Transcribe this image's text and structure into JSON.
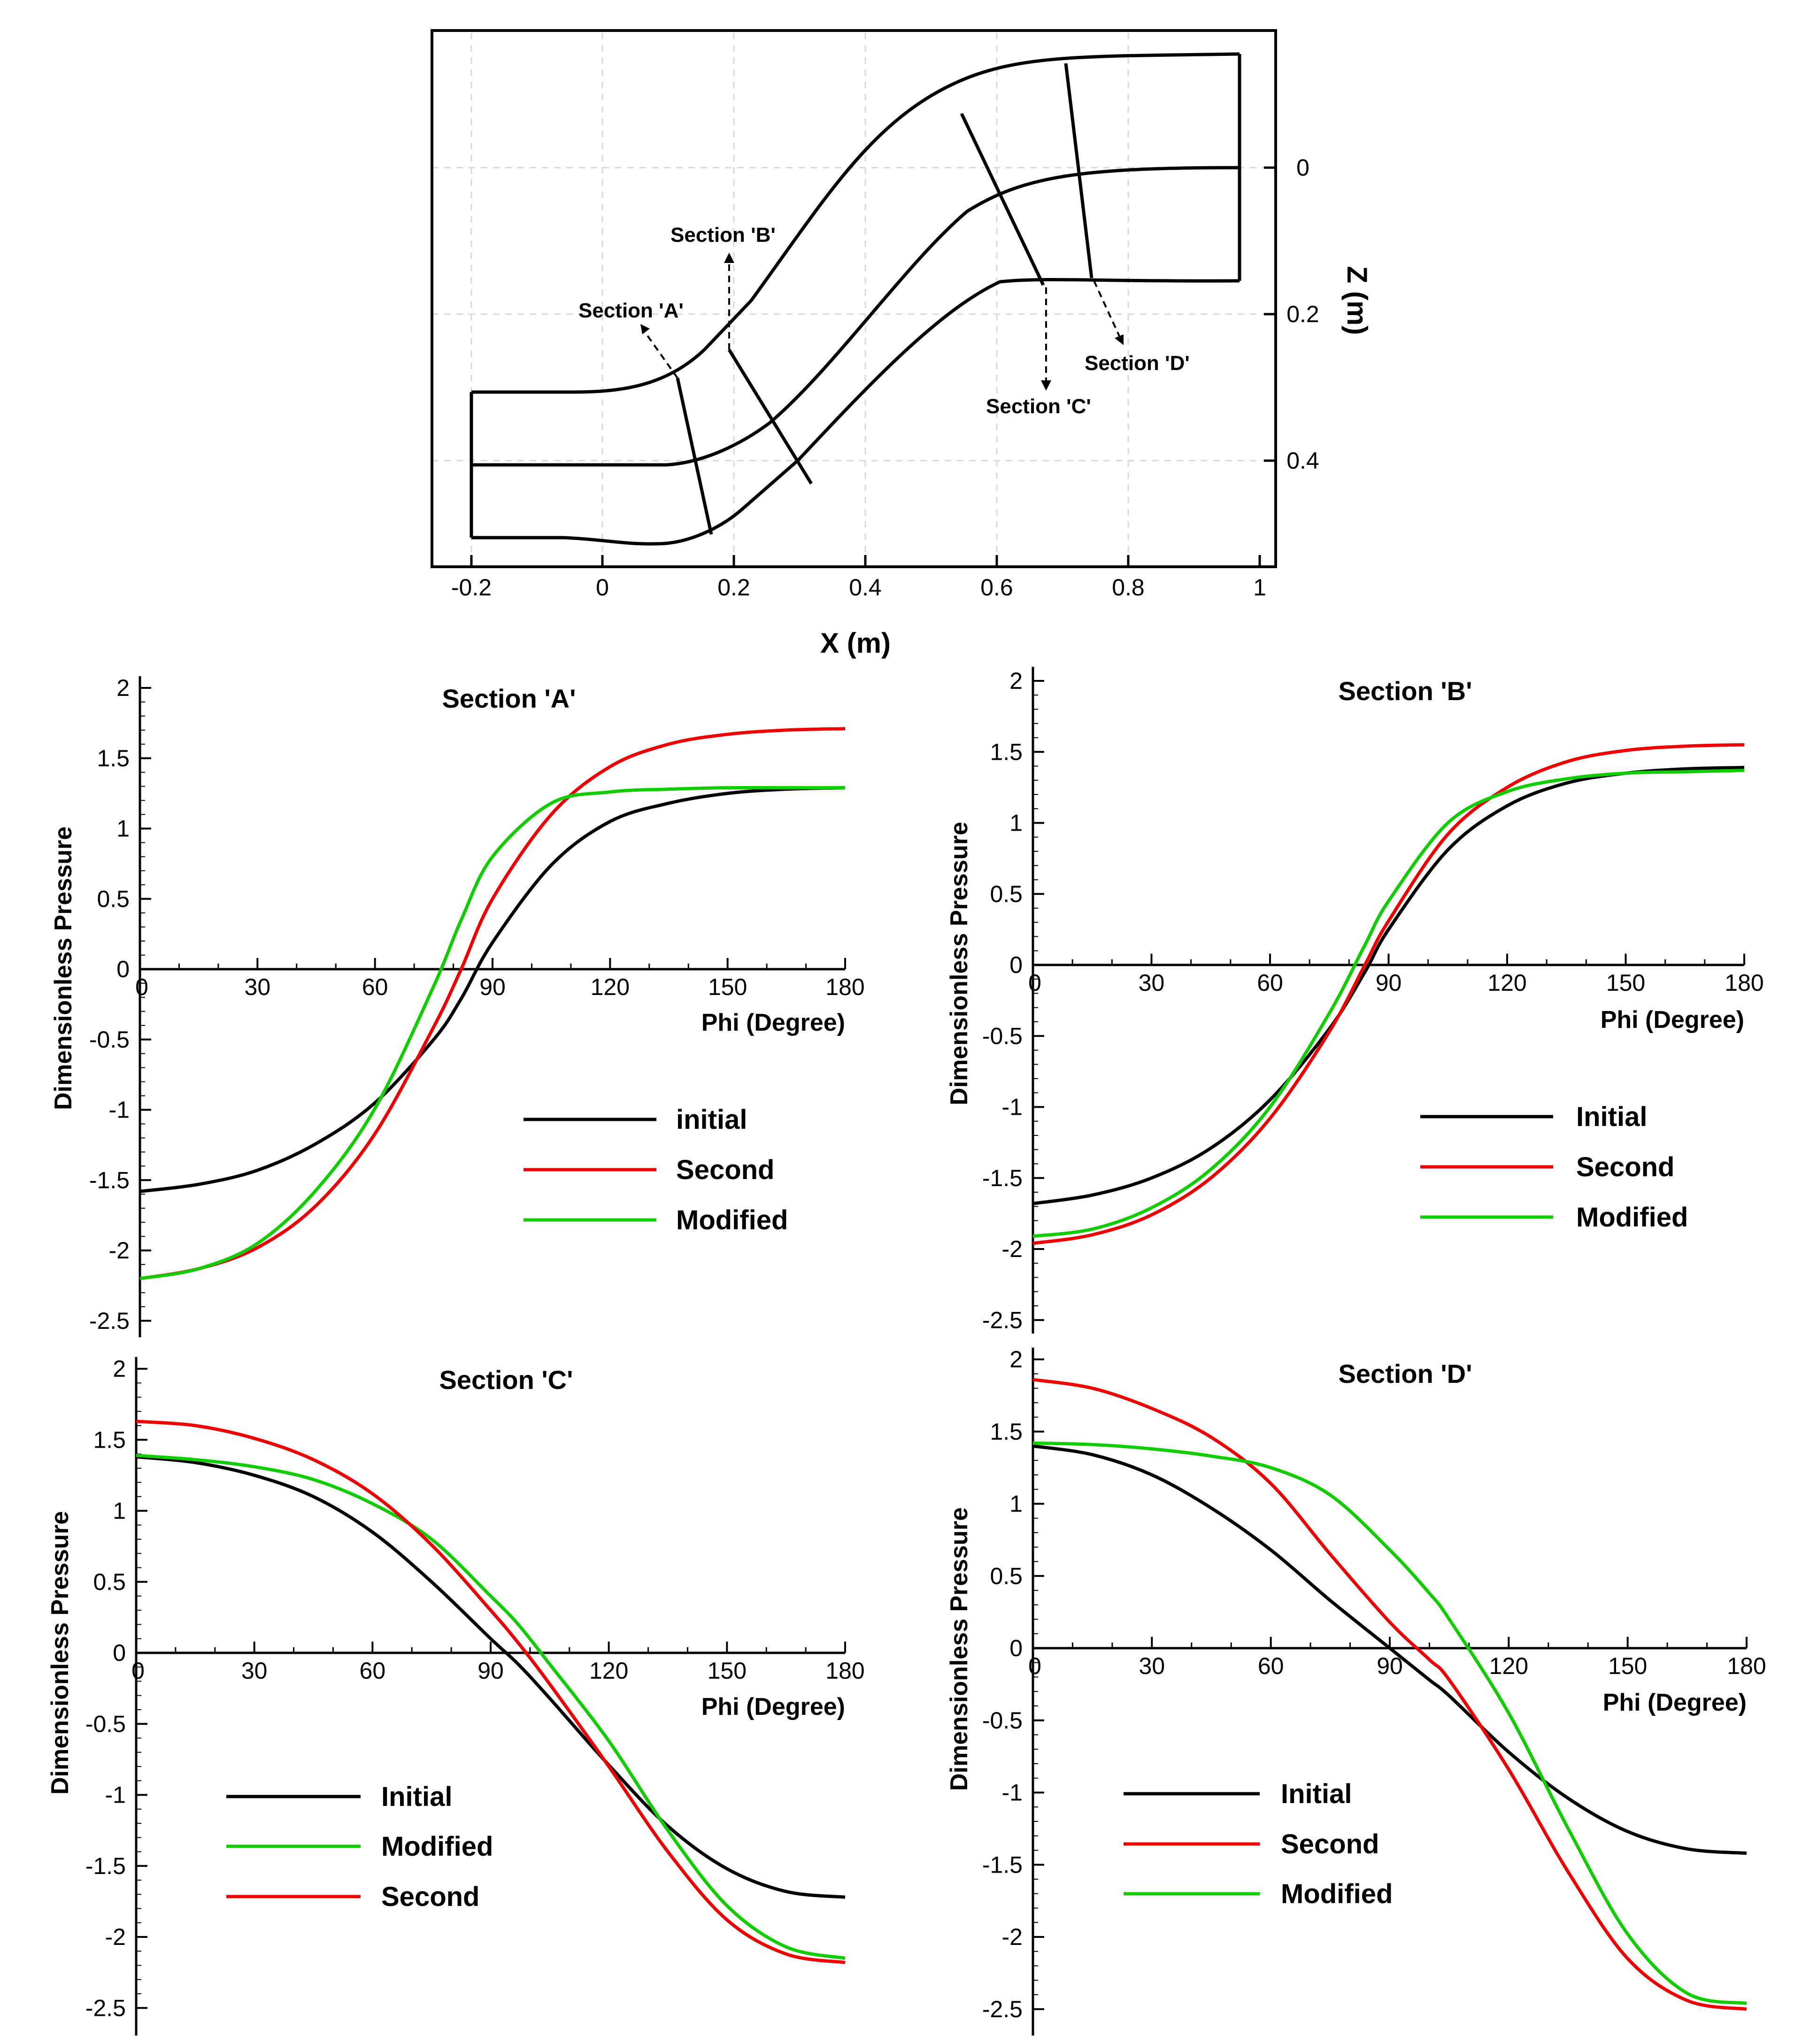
{
  "colors": {
    "initial": "#000000",
    "second": "#ee0000",
    "modified": "#11cc00",
    "grid": "#d8d8d8"
  },
  "geometry": {
    "xlabel": "X (m)",
    "zlabel": "Z (m)",
    "xticks": [
      "-0.2",
      "0",
      "0.2",
      "0.4",
      "0.6",
      "0.8",
      "1"
    ],
    "zticks": [
      "0",
      "0.2",
      "0.4"
    ],
    "section_labels": [
      "Section 'A'",
      "Section 'B'",
      "Section 'C'",
      "Section 'D'"
    ]
  },
  "chart_data": [
    {
      "type": "line",
      "title": "Section 'A'",
      "xlabel": "Phi (Degree)",
      "ylabel": "Dimensionless Pressure",
      "xlim": [
        0,
        180
      ],
      "ylim": [
        -2.6,
        2.1
      ],
      "xticks": [
        "0",
        "30",
        "60",
        "90",
        "120",
        "150",
        "180"
      ],
      "yticks": [
        "2",
        "1.5",
        "1",
        "0.5",
        "0",
        "-0.5",
        "-1",
        "-1.5",
        "-2",
        "-2.5"
      ],
      "legend": [
        "initial",
        "Second",
        "Modified"
      ],
      "x": [
        0,
        15,
        30,
        45,
        60,
        75,
        82,
        90,
        105,
        120,
        135,
        150,
        165,
        180
      ],
      "series": [
        {
          "name": "initial",
          "key": "initial",
          "values": [
            -1.58,
            -1.53,
            -1.43,
            -1.24,
            -0.95,
            -0.5,
            -0.21,
            0.19,
            0.74,
            1.05,
            1.18,
            1.25,
            1.28,
            1.29
          ]
        },
        {
          "name": "Second",
          "key": "second",
          "values": [
            -2.2,
            -2.13,
            -1.98,
            -1.68,
            -1.17,
            -0.41,
            0.0,
            0.5,
            1.1,
            1.44,
            1.6,
            1.67,
            1.7,
            1.71
          ]
        },
        {
          "name": "Modified",
          "key": "modified",
          "values": [
            -2.2,
            -2.13,
            -1.95,
            -1.57,
            -0.99,
            -0.12,
            0.35,
            0.8,
            1.18,
            1.26,
            1.28,
            1.29,
            1.29,
            1.29
          ]
        }
      ]
    },
    {
      "type": "line",
      "title": "Section 'B'",
      "xlabel": "Phi (Degree)",
      "ylabel": "Dimensionless Pressure",
      "xlim": [
        0,
        180
      ],
      "ylim": [
        -2.6,
        2.1
      ],
      "xticks": [
        "0",
        "30",
        "60",
        "90",
        "120",
        "150",
        "180"
      ],
      "yticks": [
        "2",
        "1.5",
        "1",
        "0.5",
        "0",
        "-0.5",
        "-1",
        "-1.5",
        "-2",
        "-2.5"
      ],
      "legend": [
        "Initial",
        "Second",
        "Modified"
      ],
      "x": [
        0,
        15,
        30,
        45,
        60,
        75,
        84,
        90,
        105,
        120,
        135,
        150,
        165,
        180
      ],
      "series": [
        {
          "name": "Initial",
          "key": "initial",
          "values": [
            -1.68,
            -1.62,
            -1.5,
            -1.29,
            -0.95,
            -0.45,
            -0.05,
            0.25,
            0.81,
            1.12,
            1.28,
            1.35,
            1.38,
            1.39
          ]
        },
        {
          "name": "Second",
          "key": "second",
          "values": [
            -1.96,
            -1.9,
            -1.76,
            -1.5,
            -1.08,
            -0.47,
            0.0,
            0.31,
            0.92,
            1.25,
            1.43,
            1.51,
            1.54,
            1.55
          ]
        },
        {
          "name": "Modified",
          "key": "modified",
          "values": [
            -1.91,
            -1.86,
            -1.71,
            -1.44,
            -1.0,
            -0.34,
            0.14,
            0.45,
            1.0,
            1.22,
            1.31,
            1.35,
            1.36,
            1.37
          ]
        }
      ]
    },
    {
      "type": "line",
      "title": "Section 'C'",
      "xlabel": "Phi (Degree)",
      "ylabel": "Dimensionless Pressure",
      "xlim": [
        0,
        180
      ],
      "ylim": [
        -2.6,
        2.1
      ],
      "xticks": [
        "0",
        "30",
        "60",
        "90",
        "120",
        "150",
        "180"
      ],
      "yticks": [
        "2",
        "1.5",
        "1",
        "0.5",
        "0",
        "-0.5",
        "-1",
        "-1.5",
        "-2",
        "-2.5"
      ],
      "legend": [
        "Initial",
        "Modified",
        "Second"
      ],
      "x": [
        0,
        15,
        30,
        45,
        60,
        75,
        90,
        97,
        105,
        120,
        135,
        150,
        165,
        180
      ],
      "series": [
        {
          "name": "Initial",
          "key": "initial",
          "values": [
            1.38,
            1.34,
            1.25,
            1.1,
            0.85,
            0.5,
            0.1,
            -0.08,
            -0.32,
            -0.79,
            -1.22,
            -1.52,
            -1.68,
            -1.72
          ]
        },
        {
          "name": "Modified",
          "key": "modified",
          "values": [
            1.39,
            1.36,
            1.31,
            1.22,
            1.05,
            0.8,
            0.4,
            0.2,
            -0.08,
            -0.62,
            -1.25,
            -1.78,
            -2.07,
            -2.15
          ]
        },
        {
          "name": "Second",
          "key": "second",
          "values": [
            1.63,
            1.6,
            1.51,
            1.36,
            1.12,
            0.76,
            0.3,
            0.07,
            -0.22,
            -0.8,
            -1.4,
            -1.88,
            -2.12,
            -2.18
          ]
        }
      ]
    },
    {
      "type": "line",
      "title": "Section 'D'",
      "xlabel": "Phi (Degree)",
      "ylabel": "Dimensionless Pressure",
      "xlim": [
        0,
        180
      ],
      "ylim": [
        -2.6,
        2.1
      ],
      "xticks": [
        "0",
        "30",
        "60",
        "90",
        "120",
        "150",
        "180"
      ],
      "yticks": [
        "2",
        "1.5",
        "1",
        "0.5",
        "0",
        "-0.5",
        "-1",
        "-1.5",
        "-2",
        "-2.5"
      ],
      "legend": [
        "Initial",
        "Second",
        "Modified"
      ],
      "x": [
        0,
        15,
        30,
        45,
        60,
        75,
        90,
        100,
        105,
        120,
        135,
        150,
        165,
        180
      ],
      "series": [
        {
          "name": "Initial",
          "key": "initial",
          "values": [
            1.4,
            1.34,
            1.2,
            0.97,
            0.68,
            0.33,
            0.0,
            -0.22,
            -0.33,
            -0.72,
            -1.04,
            -1.27,
            -1.39,
            -1.42
          ]
        },
        {
          "name": "Second",
          "key": "second",
          "values": [
            1.86,
            1.8,
            1.66,
            1.46,
            1.14,
            0.65,
            0.18,
            -0.08,
            -0.22,
            -0.84,
            -1.55,
            -2.15,
            -2.44,
            -2.5
          ]
        },
        {
          "name": "Modified",
          "key": "modified",
          "values": [
            1.42,
            1.41,
            1.38,
            1.33,
            1.25,
            1.06,
            0.68,
            0.38,
            0.2,
            -0.45,
            -1.25,
            -1.98,
            -2.39,
            -2.46
          ]
        }
      ]
    }
  ]
}
